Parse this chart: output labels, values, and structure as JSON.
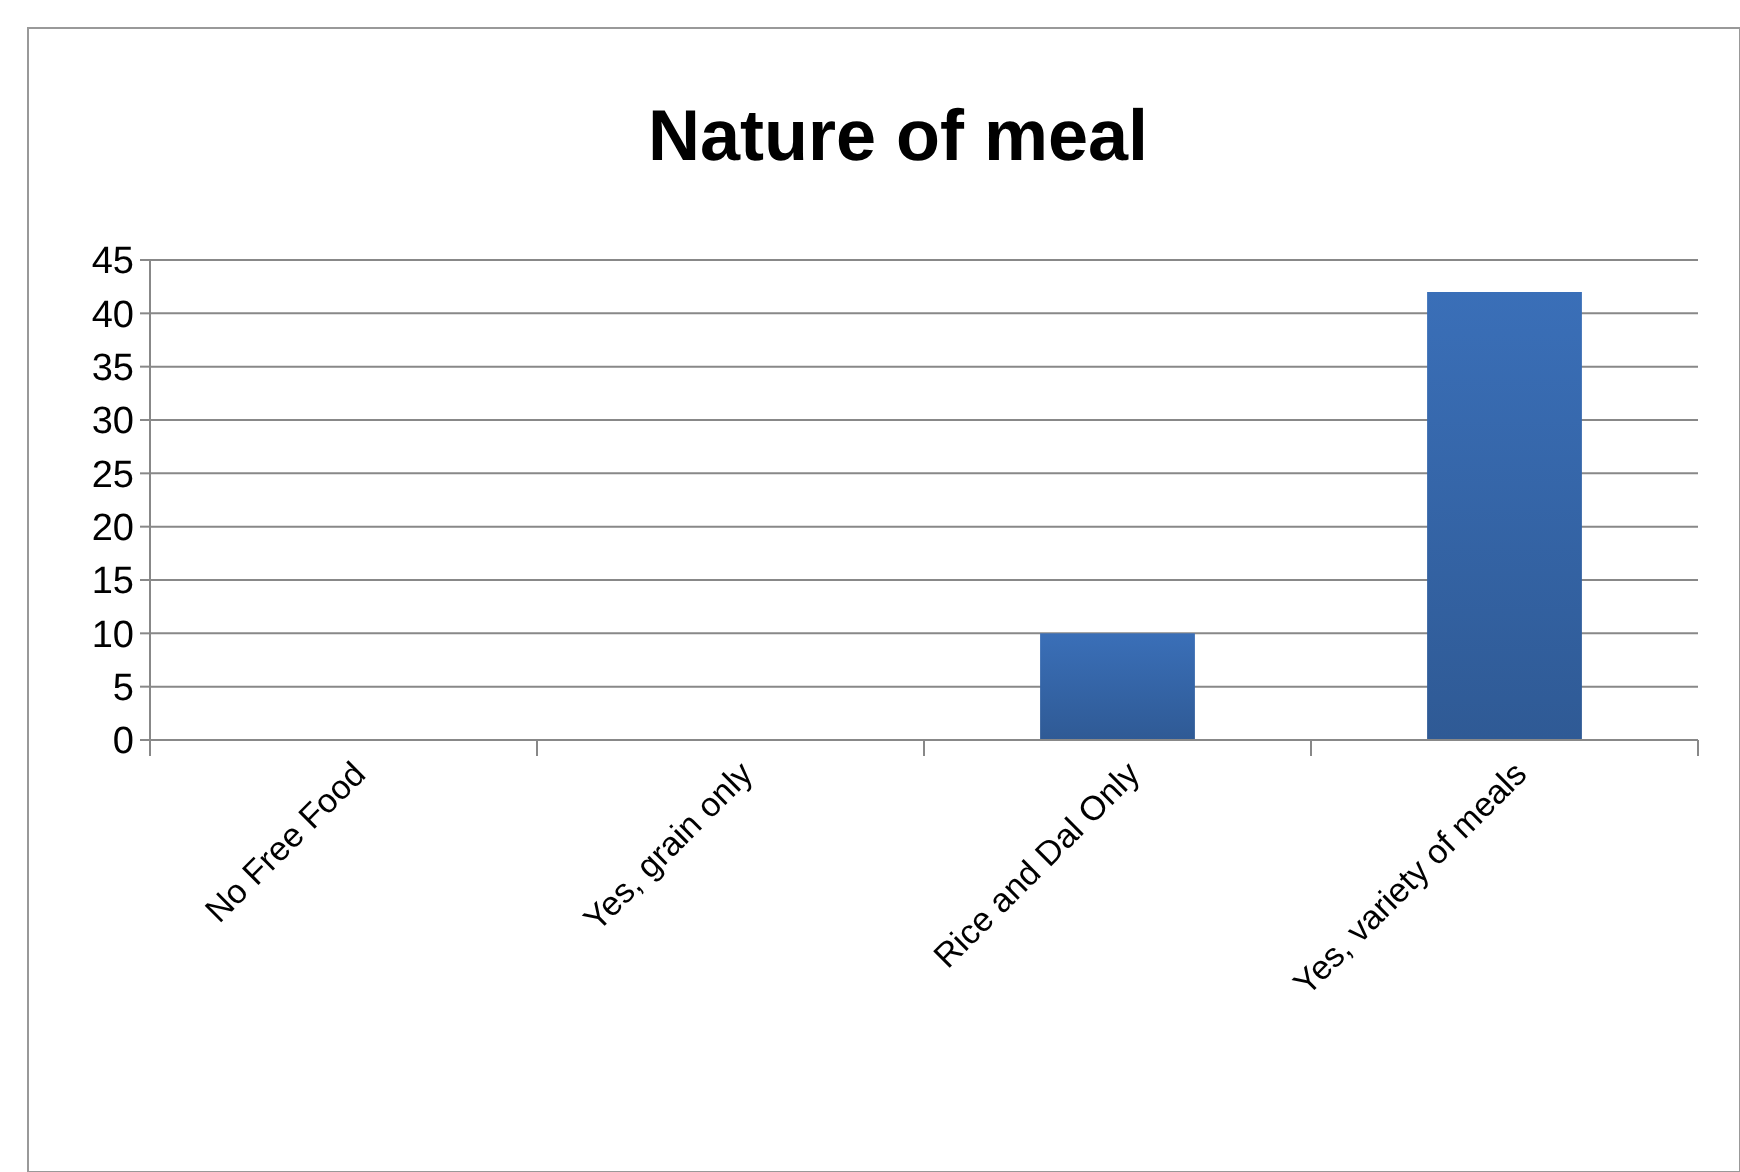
{
  "chart_data": {
    "type": "bar",
    "title": "Nature of meal",
    "categories": [
      "No Free Food",
      "Yes, grain only",
      "Rice and Dal Only",
      "Yes, variety of meals"
    ],
    "values": [
      0,
      0,
      10,
      42
    ],
    "color": "#3a6fb8",
    "ylim": [
      0,
      45
    ],
    "yticks": [
      0,
      5,
      10,
      15,
      20,
      25,
      30,
      35,
      40,
      45
    ],
    "grid": "y"
  }
}
